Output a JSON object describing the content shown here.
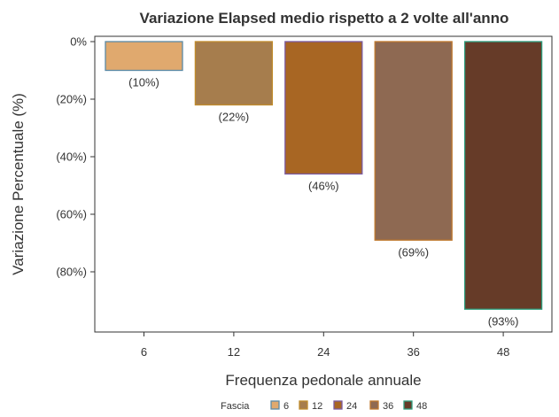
{
  "chart_data": {
    "type": "bar",
    "title": "Variazione Elapsed medio rispetto a 2 volte all'anno",
    "xlabel": "Frequenza pedonale annuale",
    "ylabel": "Variazione Percentuale (%)",
    "categories": [
      "6",
      "12",
      "24",
      "36",
      "48"
    ],
    "values": [
      -10,
      -22,
      -46,
      -69,
      -93
    ],
    "data_labels": [
      "(10%)",
      "(22%)",
      "(46%)",
      "(69%)",
      "(93%)"
    ],
    "fill_colors": [
      "#E0A96E",
      "#A67D4D",
      "#A86623",
      "#8E6952",
      "#663B28"
    ],
    "outline_colors": [
      "#5B8AA6",
      "#C08B2C",
      "#7A5AA0",
      "#C0792E",
      "#2E9E7E"
    ],
    "ylim": [
      -100,
      0
    ],
    "yticks": [
      0,
      -20,
      -40,
      -60,
      -80
    ],
    "ytick_labels": [
      "0%",
      "(20%)",
      "(40%)",
      "(60%)",
      "(80%)"
    ],
    "grid": false,
    "legend": {
      "title": "Fascia",
      "placement": "bottom",
      "entries": [
        "6",
        "12",
        "24",
        "36",
        "48"
      ]
    }
  }
}
